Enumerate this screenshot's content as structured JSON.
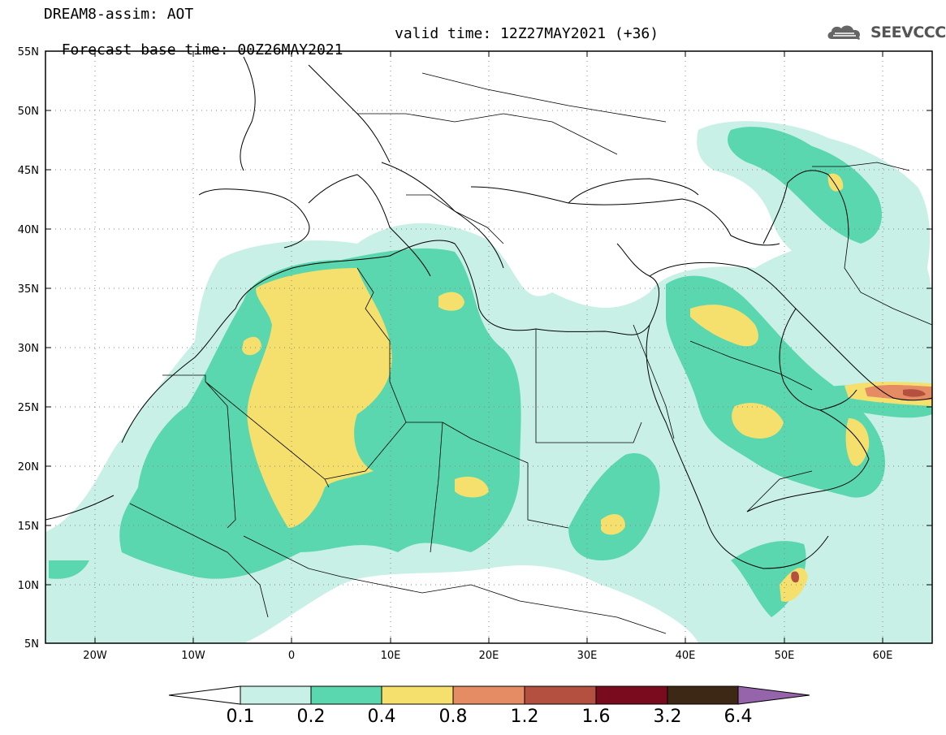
{
  "header": {
    "line1": "DREAM8-assim: AOT",
    "line2_left": "Forecast base time: 00Z26MAY2021",
    "line2_right": "valid time: 12Z27MAY2021 (+36)"
  },
  "logo": {
    "text": "SEEVCCC",
    "icon": "cloud-icon"
  },
  "map": {
    "lon_range": [
      -25,
      65
    ],
    "lat_range": [
      5,
      55
    ],
    "lat_labels": [
      "55N",
      "50N",
      "45N",
      "40N",
      "35N",
      "30N",
      "25N",
      "20N",
      "15N",
      "10N",
      "5N"
    ],
    "lon_labels": [
      "20W",
      "10W",
      "0",
      "10E",
      "20E",
      "30E",
      "40E",
      "50E",
      "60E"
    ],
    "dotted_grid": true
  },
  "colorbar": {
    "levels": [
      "0.1",
      "0.2",
      "0.4",
      "0.8",
      "1.2",
      "1.6",
      "3.2",
      "6.4"
    ],
    "colors": {
      "below": "#ffffff",
      "c01_02": "#c8f0e6",
      "c02_04": "#5ad7ae",
      "c04_08": "#f5e06e",
      "c08_12": "#e68c64",
      "c12_16": "#b45040",
      "c16_32": "#7a0a1e",
      "c32_64": "#3c2814",
      "above": "#9664aa"
    }
  }
}
